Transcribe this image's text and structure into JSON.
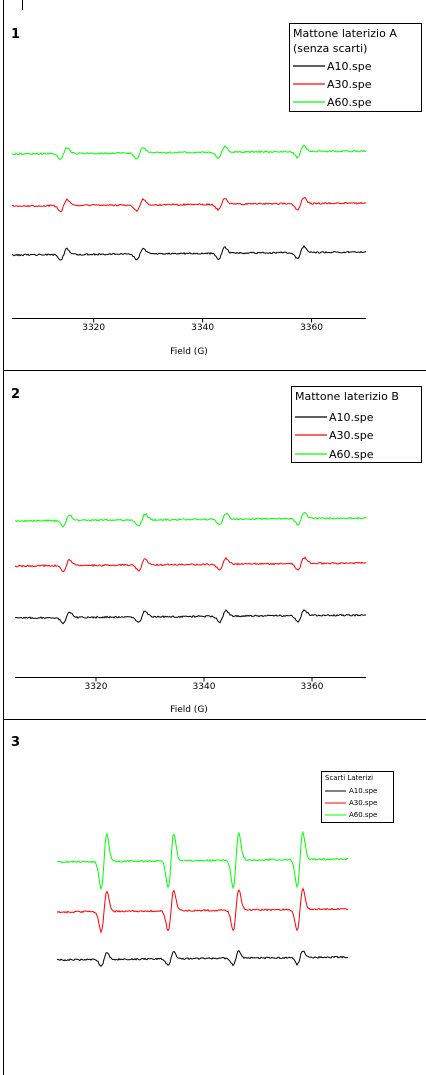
{
  "chart_data": [
    {
      "type": "line",
      "panel_label": "1",
      "xlabel": "Field (G)",
      "xlim": [
        3305,
        3370
      ],
      "xticks": [
        3320,
        3340,
        3360
      ],
      "xtick_labels": [
        "3320",
        "3340",
        "3360"
      ],
      "legend": {
        "title_lines": [
          "Mattone laterizio A",
          "(senza scarti)"
        ],
        "placement": "top-right"
      },
      "series": [
        {
          "name": "A10.spe",
          "color": "#000000",
          "amplitude": 1.0
        },
        {
          "name": "A30.spe",
          "color": "#ff0000",
          "amplitude": 1.0
        },
        {
          "name": "A60.spe",
          "color": "#00ff00",
          "amplitude": 1.0
        }
      ],
      "line_centers": [
        3314.5,
        3328.5,
        3343.5,
        3358
      ]
    },
    {
      "type": "line",
      "panel_label": "2",
      "xlabel": "Field (G)",
      "xlim": [
        3305,
        3370
      ],
      "xticks": [
        3320,
        3340,
        3360
      ],
      "xtick_labels": [
        "3320",
        "3340",
        "3360"
      ],
      "legend": {
        "title_lines": [
          "Mattone laterizio B"
        ],
        "placement": "top-right"
      },
      "series": [
        {
          "name": "A10.spe",
          "color": "#000000",
          "amplitude": 1.0
        },
        {
          "name": "A30.spe",
          "color": "#ff0000",
          "amplitude": 1.0
        },
        {
          "name": "A60.spe",
          "color": "#00ff00",
          "amplitude": 1.0
        }
      ],
      "line_centers": [
        3314.5,
        3328.5,
        3343.5,
        3358
      ]
    },
    {
      "type": "line",
      "panel_label": "3",
      "xlabel": "",
      "legend": {
        "title_lines": [
          "Scarti Laterizi"
        ],
        "placement": "top-right"
      },
      "series": [
        {
          "name": "A10.spe",
          "color": "#000000",
          "amplitude": 1.0
        },
        {
          "name": "A30.spe",
          "color": "#ff0000",
          "amplitude": 3.0
        },
        {
          "name": "A60.spe",
          "color": "#00ff00",
          "amplitude": 4.0
        }
      ],
      "line_centers": [
        1,
        2,
        3,
        4
      ]
    }
  ]
}
